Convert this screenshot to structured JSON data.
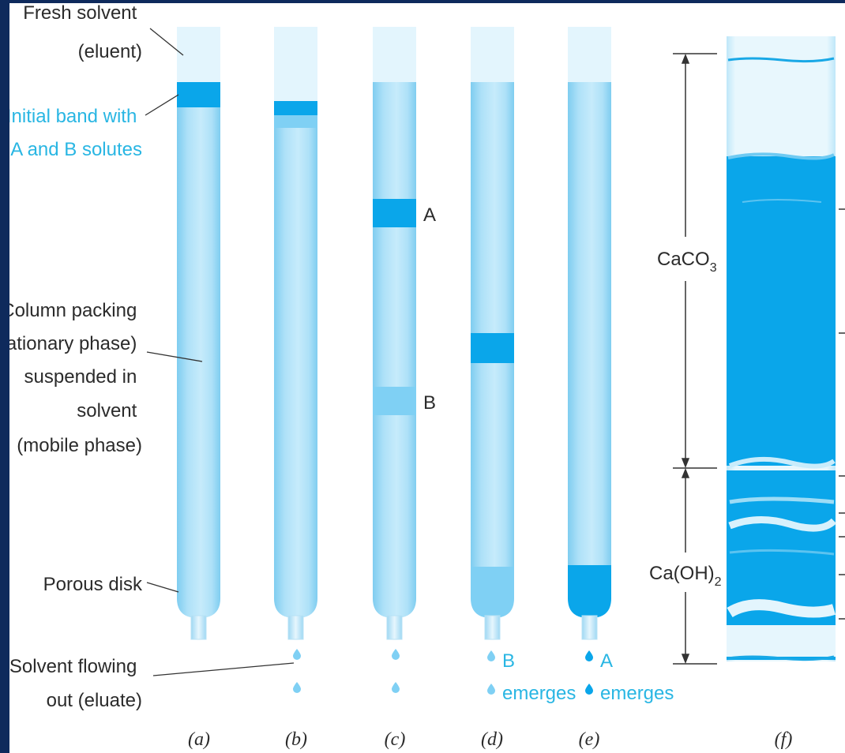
{
  "labels": {
    "fresh_solvent": [
      "Fresh solvent",
      "(eluent)"
    ],
    "initial_band": [
      "Initial band with",
      "A and B solutes"
    ],
    "column_packing": [
      "Column packing",
      "(stationary phase)",
      "suspended in",
      "solvent",
      "(mobile phase)"
    ],
    "porous_disk": "Porous disk",
    "solvent_flowing": [
      "Solvent flowing",
      "out (eluate)"
    ],
    "band_a": "A",
    "band_b": "B",
    "b_emerges": [
      "B",
      "emerges"
    ],
    "a_emerges": [
      "A",
      "emerges"
    ],
    "caco3": "CaCO",
    "caco3_sub": "3",
    "caoh2": "Ca(OH)",
    "caoh2_sub": "2"
  },
  "captions": [
    "(a)",
    "(b)",
    "(c)",
    "(d)",
    "(e)",
    "(f)"
  ],
  "colors": {
    "column_fill": "#aee1f8",
    "column_edge": "#7fcdf0",
    "band": "#0aa6ea",
    "band_faint": "#7fd0f4",
    "solvent_top": "#e3f5fd",
    "text": "#2b2b2b",
    "label_blue": "#29b6e3",
    "frame": "#0e2a5c"
  }
}
